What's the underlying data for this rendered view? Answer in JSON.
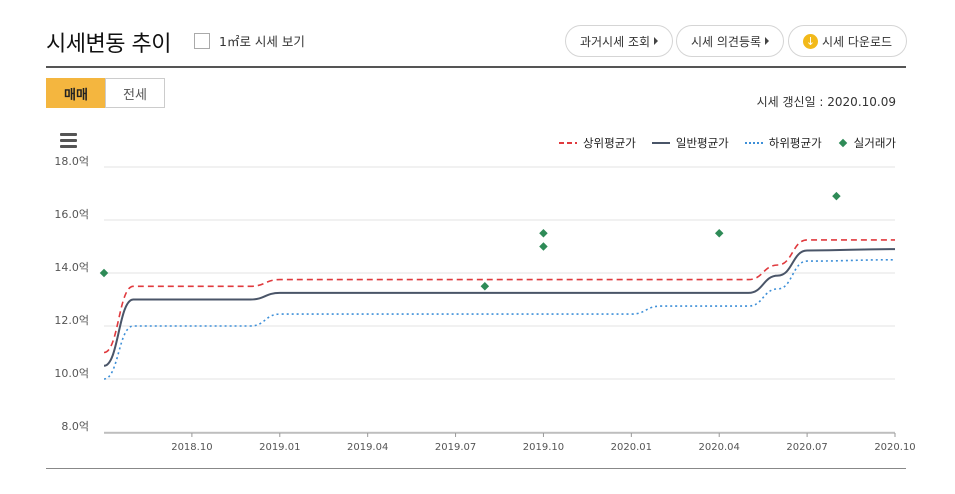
{
  "header": {
    "title": "시세변동 추이",
    "area_toggle_label": "1㎡로 시세 보기",
    "buttons": {
      "past_price": "과거시세 조회",
      "opinion": "시세 의견등록",
      "download": "시세 다운로드"
    }
  },
  "tabs": [
    {
      "label": "매매",
      "active": true
    },
    {
      "label": "전세",
      "active": false
    }
  ],
  "updated_text": "시세 갱신일 : 2020.10.09",
  "colors": {
    "upper": "#e03a3e",
    "normal": "#4a5568",
    "lower": "#3d8fd8",
    "actual": "#2e8b57",
    "accent": "#f4b63f"
  },
  "icons": [
    "hamburger-menu-icon",
    "chevron-right-icon",
    "download-icon"
  ],
  "chart_data": {
    "type": "line",
    "y_unit": "억",
    "ylim": [
      8.0,
      18.0
    ],
    "y_ticks": [
      "18.0억",
      "16.0억",
      "14.0억",
      "12.0억",
      "10.0억",
      "8.0억"
    ],
    "x_ticks": [
      "2018.10",
      "2019.01",
      "2019.04",
      "2019.07",
      "2019.10",
      "2020.01",
      "2020.04",
      "2020.07",
      "2020.10"
    ],
    "series": [
      {
        "name": "상위평균가",
        "style": "dashed",
        "points": [
          [
            "2018.07",
            11.0
          ],
          [
            "2018.08",
            13.5
          ],
          [
            "2018.12",
            13.5
          ],
          [
            "2019.01",
            13.75
          ],
          [
            "2020.05",
            13.75
          ],
          [
            "2020.06",
            14.3
          ],
          [
            "2020.07",
            15.25
          ],
          [
            "2020.10",
            15.25
          ]
        ]
      },
      {
        "name": "일반평균가",
        "style": "solid",
        "points": [
          [
            "2018.07",
            10.5
          ],
          [
            "2018.08",
            13.0
          ],
          [
            "2018.12",
            13.0
          ],
          [
            "2019.01",
            13.25
          ],
          [
            "2020.05",
            13.25
          ],
          [
            "2020.06",
            13.9
          ],
          [
            "2020.07",
            14.85
          ],
          [
            "2020.10",
            14.9
          ]
        ]
      },
      {
        "name": "하위평균가",
        "style": "dotted",
        "points": [
          [
            "2018.07",
            10.0
          ],
          [
            "2018.08",
            12.0
          ],
          [
            "2018.12",
            12.0
          ],
          [
            "2019.01",
            12.45
          ],
          [
            "2020.01",
            12.45
          ],
          [
            "2020.02",
            12.75
          ],
          [
            "2020.05",
            12.75
          ],
          [
            "2020.06",
            13.4
          ],
          [
            "2020.07",
            14.45
          ],
          [
            "2020.10",
            14.5
          ]
        ]
      }
    ],
    "actual_trades": {
      "name": "실거래가",
      "points": [
        [
          "2018.07",
          14.0
        ],
        [
          "2019.08",
          13.5
        ],
        [
          "2019.10",
          15.5
        ],
        [
          "2019.10",
          15.0
        ],
        [
          "2020.04",
          15.5
        ],
        [
          "2020.08",
          16.9
        ]
      ]
    },
    "grid": true,
    "legend_position": "top-right"
  }
}
